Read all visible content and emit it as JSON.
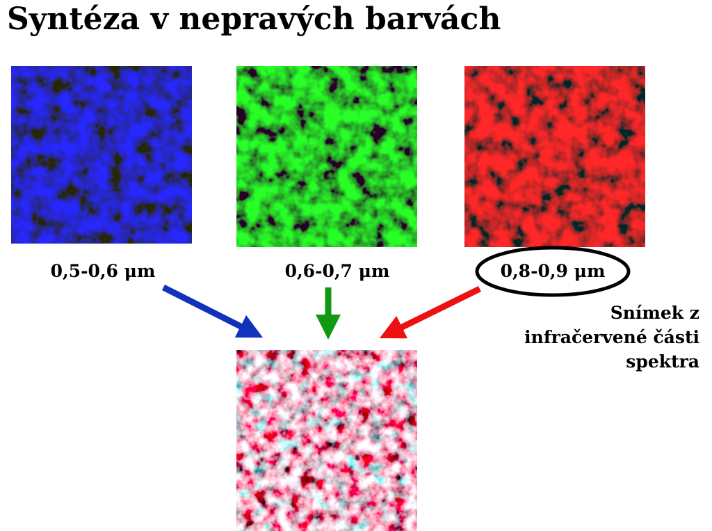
{
  "title": "Syntéza v nepravých barvách",
  "bands": [
    {
      "label": "0,5-0,6 μm"
    },
    {
      "label": "0,6-0,7 μm"
    },
    {
      "label": "0,8-0,9 μm"
    }
  ],
  "annotation": {
    "lines": [
      "Snímek z",
      "infračervené části",
      "spektra"
    ]
  }
}
